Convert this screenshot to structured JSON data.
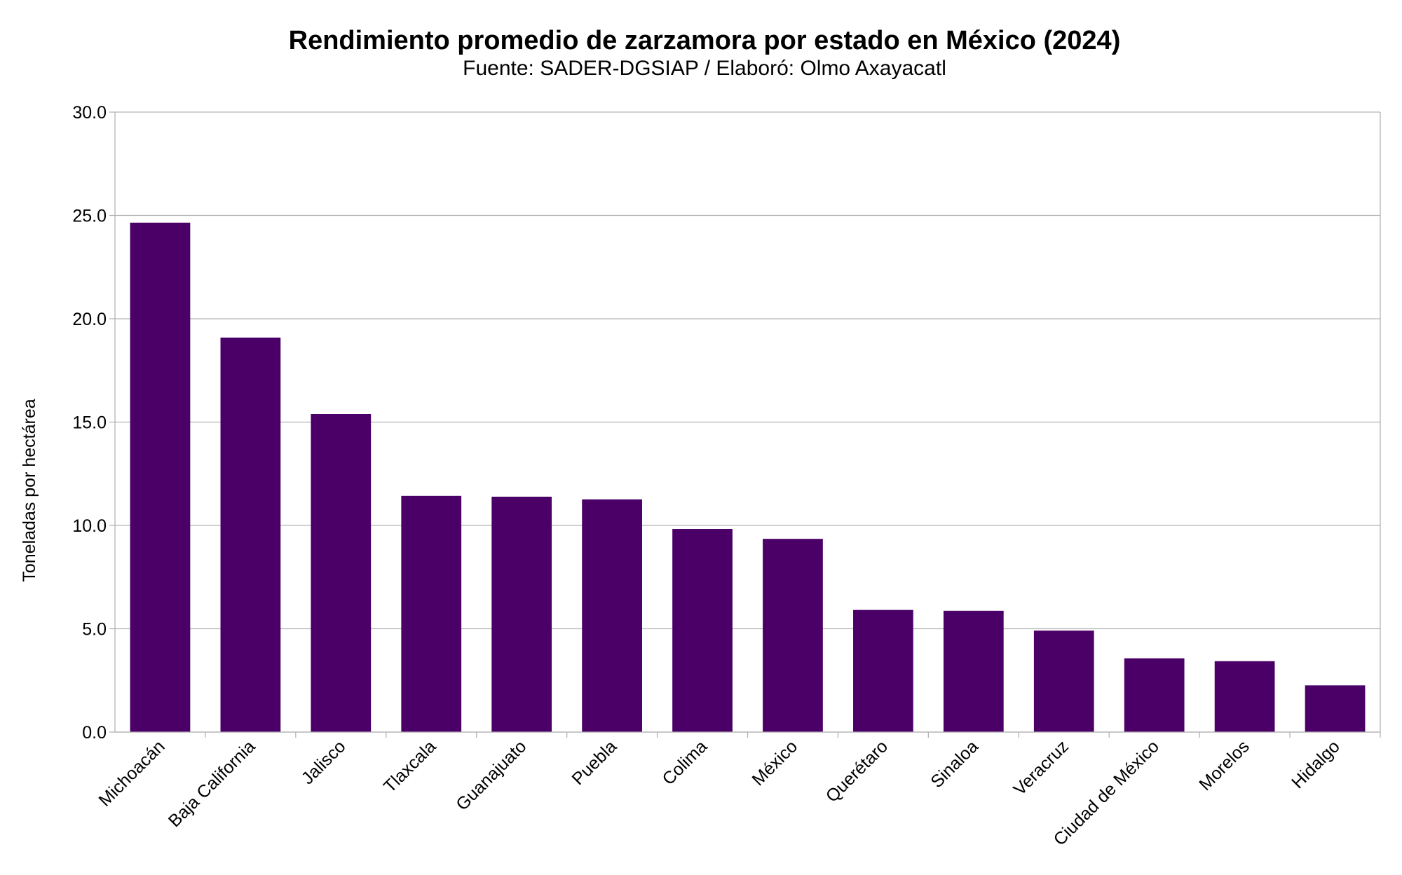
{
  "chart_data": {
    "type": "bar",
    "title": "Rendimiento promedio de zarzamora por estado en México (2024)",
    "subtitle": "Fuente: SADER-DGSIAP / Elaboró: Olmo Axayacatl",
    "xlabel": "",
    "ylabel": "Toneladas por hectárea",
    "ylim": [
      0,
      30
    ],
    "yticks": [
      "0.0",
      "5.0",
      "10.0",
      "15.0",
      "20.0",
      "25.0",
      "30.0"
    ],
    "grid": true,
    "legend": "none",
    "bar_color": "#4b0068",
    "categories": [
      "Michoacán",
      "Baja California",
      "Jalisco",
      "Tlaxcala",
      "Guanajuato",
      "Puebla",
      "Colima",
      "México",
      "Querétaro",
      "Sinaloa",
      "Veracruz",
      "Ciudad de México",
      "Morelos",
      "Hidalgo"
    ],
    "values": [
      24.65,
      19.09,
      15.39,
      11.43,
      11.39,
      11.26,
      9.83,
      9.35,
      5.91,
      5.87,
      4.91,
      3.57,
      3.43,
      2.26
    ]
  }
}
